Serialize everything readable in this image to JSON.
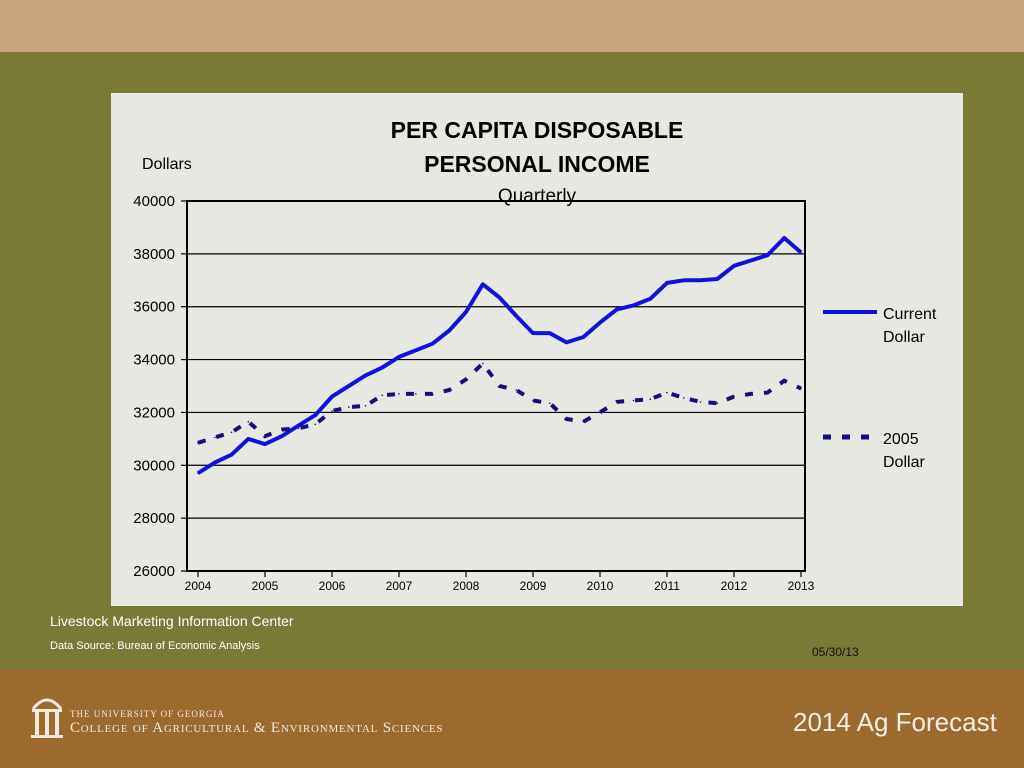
{
  "chart_data": {
    "type": "line",
    "title_line1": "PER  CAPITA  DISPOSABLE",
    "title_line2": "PERSONAL INCOME",
    "subtitle": "Quarterly",
    "ylabel": "Dollars",
    "ylim": [
      26000,
      40000
    ],
    "yticks": [
      26000,
      28000,
      30000,
      32000,
      34000,
      36000,
      38000,
      40000
    ],
    "x_year_range": [
      2004,
      2013.375
    ],
    "xticks": [
      "2004",
      "2005",
      "2006",
      "2007",
      "2008",
      "2009",
      "2010",
      "2011",
      "2012",
      "2013"
    ],
    "grid": true,
    "legend_position": "right",
    "series": [
      {
        "name_line1": "Current",
        "name_line2": "Dollar",
        "color": "#1111dd",
        "style": "solid",
        "x": [
          2004.0,
          2004.25,
          2004.5,
          2004.75,
          2005.0,
          2005.25,
          2005.5,
          2005.75,
          2006.0,
          2006.25,
          2006.5,
          2006.75,
          2007.0,
          2007.25,
          2007.5,
          2007.75,
          2008.0,
          2008.25,
          2008.5,
          2008.75,
          2009.0,
          2009.25,
          2009.5,
          2009.75,
          2010.0,
          2010.25,
          2010.5,
          2010.75,
          2011.0,
          2011.25,
          2011.5,
          2011.75,
          2012.0,
          2012.25,
          2012.5,
          2012.75,
          2013.0
        ],
        "values": [
          29700,
          30100,
          30400,
          31000,
          30800,
          31100,
          31500,
          31900,
          32600,
          33000,
          33400,
          33700,
          34100,
          34350,
          34600,
          35100,
          35800,
          36850,
          36350,
          35650,
          35000,
          35000,
          34650,
          34850,
          35400,
          35900,
          36050,
          36300,
          36900,
          37000,
          37000,
          37050,
          37550,
          37750,
          37950,
          38600,
          38050
        ]
      },
      {
        "name_line1": "2005",
        "name_line2": "Dollar",
        "color": "#11117a",
        "style": "dashed",
        "x": [
          2004.0,
          2004.25,
          2004.5,
          2004.75,
          2005.0,
          2005.25,
          2005.5,
          2005.75,
          2006.0,
          2006.25,
          2006.5,
          2006.75,
          2007.0,
          2007.25,
          2007.5,
          2007.75,
          2008.0,
          2008.25,
          2008.5,
          2008.75,
          2009.0,
          2009.25,
          2009.5,
          2009.75,
          2010.0,
          2010.25,
          2010.5,
          2010.75,
          2011.0,
          2011.25,
          2011.5,
          2011.75,
          2012.0,
          2012.25,
          2012.5,
          2012.75,
          2013.0
        ],
        "values": [
          30850,
          31050,
          31250,
          31650,
          31100,
          31350,
          31400,
          31550,
          32050,
          32200,
          32250,
          32650,
          32700,
          32700,
          32700,
          32850,
          33250,
          33850,
          33000,
          32850,
          32450,
          32350,
          31750,
          31650,
          32000,
          32400,
          32450,
          32500,
          32750,
          32550,
          32400,
          32350,
          32600,
          32700,
          32750,
          33200,
          32900
        ]
      }
    ]
  },
  "footer": {
    "center_name": "Livestock Marketing Information Center",
    "data_source": "Data Source:  Bureau of Economic Analysis",
    "date": "05/30/13"
  },
  "branding": {
    "university_line": "THE UNIVERSITY OF GEORGIA",
    "college_line": "College of Agricultural & Environmental Sciences",
    "forecast_title": "2014 Ag Forecast",
    "logo_icon": "arch-columns-icon"
  }
}
